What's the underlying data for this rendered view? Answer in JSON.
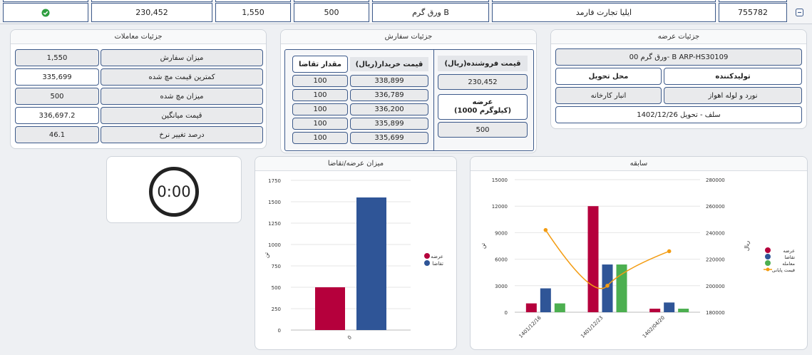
{
  "top_row": {
    "expand_icon": "minus-square-icon",
    "cells": [
      "755782",
      "ایلیا تجارت فارمد",
      "ورق گرم B",
      "500",
      "1,550",
      "230,452"
    ],
    "status_icon": "check-circle-icon"
  },
  "supply_details": {
    "title": "جزئیات عرضه",
    "product": "ورق گرم 00- B ARP-HS30109",
    "producer_label": "تولیدکننده",
    "delivery_label": "محل تحویل",
    "producer_value": "نورد و لوله اهواز",
    "delivery_value": "انبار کارخانه",
    "delivery_type": "سلف - تحویل 1402/12/26"
  },
  "order_details": {
    "title": "جزئیات سفارش",
    "seller_price_label": "قیمت فروشنده(ریال)",
    "seller_price_value": "230,452",
    "supply_label_1": "عرضه",
    "supply_label_2": "(1000 کیلوگرم)",
    "supply_value": "500",
    "buyer_price_label": "قیمت خریدار(ریال)",
    "demand_qty_label": "مقدار تقاضا",
    "rows": [
      {
        "price": "338,899",
        "qty": "100"
      },
      {
        "price": "336,789",
        "qty": "100"
      },
      {
        "price": "336,200",
        "qty": "100"
      },
      {
        "price": "335,899",
        "qty": "100"
      },
      {
        "price": "335,699",
        "qty": "100"
      }
    ]
  },
  "trade_details": {
    "title": "جزئیات معاملات",
    "rows": [
      {
        "label": "میزان سفارش",
        "value": "1,550"
      },
      {
        "label": "کمترین قیمت مچ شده",
        "value": "335,699"
      },
      {
        "label": "میزان مچ شده",
        "value": "500"
      },
      {
        "label": "قیمت میانگین",
        "value": "336,697.2"
      },
      {
        "label": "درصد تغییر نرخ",
        "value": "46.1"
      }
    ]
  },
  "timer": {
    "value": "0:00"
  },
  "colors": {
    "supply": "#b5003c",
    "demand": "#2f5597",
    "trade": "#4caf50",
    "final_price": "#f39c12",
    "border": "#3d5a8a"
  },
  "chart_data": [
    {
      "type": "bar",
      "panel_title": "میزان عرضه/تقاضا",
      "ylabel": "تن",
      "categories": [
        "0"
      ],
      "series": [
        {
          "name": "عرضه",
          "values": [
            500
          ]
        },
        {
          "name": "تقاضا",
          "values": [
            1550
          ]
        }
      ],
      "ylim": [
        0,
        1750
      ],
      "yticks": [
        "0",
        "250",
        "500",
        "750",
        "1000",
        "1250",
        "1500",
        "1750"
      ],
      "legend": "right"
    },
    {
      "type": "bar",
      "panel_title": "سابقه",
      "ylabel": "تن",
      "y2label": "ریال",
      "categories": [
        "1401/12/16",
        "1401/12/23",
        "1402/04/20"
      ],
      "series": [
        {
          "name": "عرضه",
          "values": [
            1000,
            12000,
            400
          ]
        },
        {
          "name": "تقاضا",
          "values": [
            2700,
            5400,
            1100
          ]
        },
        {
          "name": "معامله",
          "values": [
            1000,
            5400,
            400
          ]
        },
        {
          "name": "قیمت پایانی",
          "type": "line",
          "axis": "right",
          "values": [
            242000,
            200000,
            226000
          ]
        }
      ],
      "ylim": [
        0,
        15000
      ],
      "yticks": [
        "0",
        "3000",
        "6000",
        "9000",
        "12000",
        "15000"
      ],
      "y2lim": [
        180000,
        280000
      ],
      "y2ticks": [
        "180000",
        "200000",
        "220000",
        "240000",
        "260000",
        "280000"
      ],
      "legend": "right"
    }
  ]
}
